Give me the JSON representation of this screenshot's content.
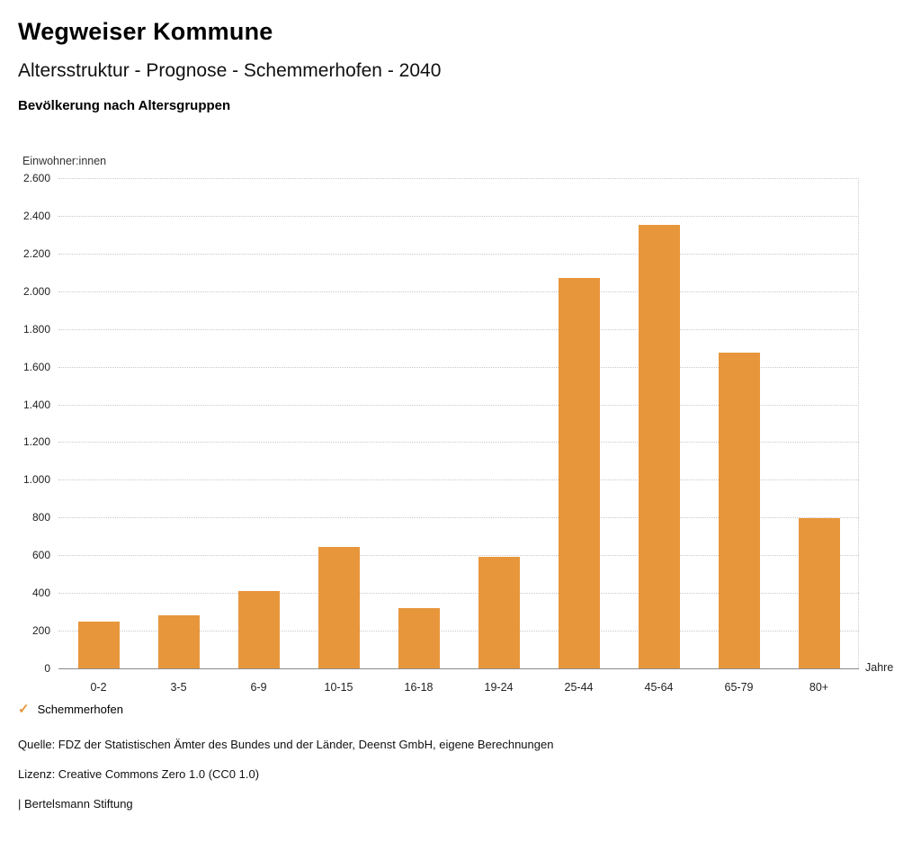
{
  "header": {
    "title": "Wegweiser Kommune",
    "subtitle": "Altersstruktur - Prognose - Schemmerhofen - 2040",
    "caption": "Bevölkerung nach Altersgruppen"
  },
  "chart_data": {
    "type": "bar",
    "title": "Bevölkerung nach Altersgruppen",
    "categories": [
      "0-2",
      "3-5",
      "6-9",
      "10-15",
      "16-18",
      "19-24",
      "25-44",
      "45-64",
      "65-79",
      "80+"
    ],
    "series": [
      {
        "name": "Schemmerhofen",
        "values": [
          250,
          280,
          410,
          645,
          320,
          590,
          2070,
          2350,
          1675,
          795
        ]
      }
    ],
    "xlabel": "Jahre",
    "ylabel": "Einwohner:innen",
    "ylim": [
      0,
      2600
    ],
    "ytick_step": 200,
    "ytick_labels": [
      "0",
      "200",
      "400",
      "600",
      "800",
      "1.000",
      "1.200",
      "1.400",
      "1.600",
      "1.800",
      "2.000",
      "2.200",
      "2.400",
      "2.600"
    ],
    "grid": "horizontal dotted",
    "legend_position": "bottom-left",
    "bar_color": "#E8963C"
  },
  "legend": {
    "check_icon": "✓",
    "label": "Schemmerhofen",
    "color": "#E8963C"
  },
  "footer": {
    "source": "Quelle: FDZ der Statistischen Ämter des Bundes und der Länder, Deenst GmbH, eigene Berechnungen",
    "license": "Lizenz: Creative Commons Zero 1.0 (CC0 1.0)",
    "attribution": "| Bertelsmann Stiftung"
  }
}
